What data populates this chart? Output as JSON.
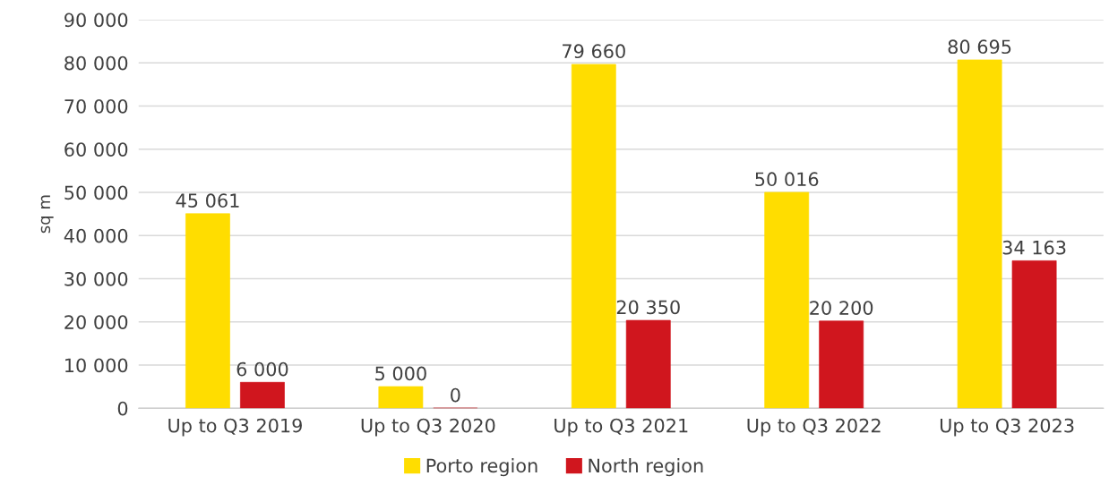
{
  "chart_data": {
    "type": "bar",
    "ylabel": "sq m",
    "categories": [
      "Up to Q3 2019",
      "Up to Q3 2020",
      "Up to Q3 2021",
      "Up to Q3 2022",
      "Up to Q3 2023"
    ],
    "series": [
      {
        "name": "Porto region",
        "color": "#ffdd00",
        "values": [
          45061,
          5000,
          79660,
          50016,
          80695
        ],
        "value_labels": [
          "45 061",
          "5 000",
          "79 660",
          "50 016",
          "80 695"
        ]
      },
      {
        "name": "North region",
        "color": "#d0161e",
        "values": [
          6000,
          0,
          20350,
          20200,
          34163
        ],
        "value_labels": [
          "6 000",
          "0",
          "20 350",
          "20 200",
          "34 163"
        ]
      }
    ],
    "ylim": [
      0,
      90000
    ],
    "yticks": [
      {
        "value": 0,
        "label": "0"
      },
      {
        "value": 10000,
        "label": "10 000"
      },
      {
        "value": 20000,
        "label": "20 000"
      },
      {
        "value": 30000,
        "label": "30 000"
      },
      {
        "value": 40000,
        "label": "40 000"
      },
      {
        "value": 50000,
        "label": "50 000"
      },
      {
        "value": 60000,
        "label": "60 000"
      },
      {
        "value": 70000,
        "label": "70 000"
      },
      {
        "value": 80000,
        "label": "80 000"
      },
      {
        "value": 90000,
        "label": "90 000"
      }
    ],
    "grid": "y",
    "legend": "bottom"
  }
}
